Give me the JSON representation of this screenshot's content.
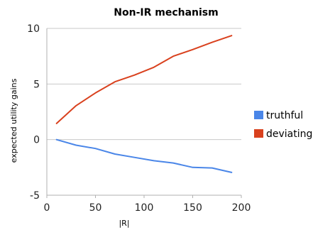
{
  "chart_data": {
    "type": "line",
    "title": "Non-IR mechanism",
    "xlabel": "|R|",
    "ylabel": "expected utility gains",
    "xlim": [
      0,
      200
    ],
    "ylim": [
      -5,
      10
    ],
    "xticks": [
      0,
      50,
      100,
      150,
      200
    ],
    "yticks": [
      -5,
      0,
      5,
      10
    ],
    "grid": "horizontal",
    "legend_position": "right",
    "x": [
      10,
      30,
      50,
      70,
      90,
      110,
      130,
      150,
      170,
      190
    ],
    "series": [
      {
        "name": "truthful",
        "color": "#4a86e8",
        "values": [
          0.0,
          -0.5,
          -0.8,
          -1.3,
          -1.6,
          -1.9,
          -2.1,
          -2.5,
          -2.55,
          -2.95
        ]
      },
      {
        "name": "deviating",
        "color": "#d9411e",
        "values": [
          1.45,
          3.05,
          4.2,
          5.2,
          5.8,
          6.5,
          7.5,
          8.1,
          8.75,
          9.35
        ]
      }
    ]
  }
}
